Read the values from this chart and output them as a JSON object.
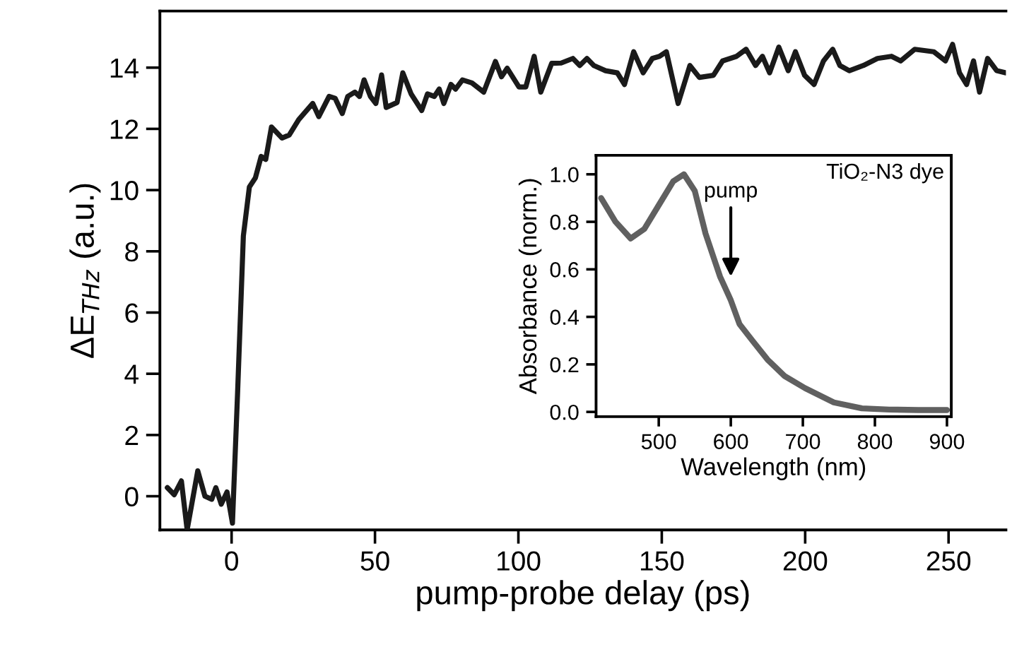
{
  "chart_data": [
    {
      "type": "line",
      "xlabel": "pump-probe delay (ps)",
      "ylabel": "ΔE$_{THz}$ (a.u.)",
      "xlim": [
        -25,
        270
      ],
      "ylim": [
        -1.1,
        15.85
      ],
      "xticks": [
        0,
        50,
        100,
        150,
        200,
        250
      ],
      "yticks": [
        0,
        2,
        4,
        6,
        8,
        10,
        12,
        14
      ],
      "grid": false,
      "legend": false,
      "marker": "none",
      "line_style": "solid",
      "series": [
        {
          "color": "#1a1a1a",
          "x": [
            -22.4,
            -20.0,
            -17.5,
            -15.5,
            -11.8,
            -9.3,
            -6.9,
            -5.5,
            -3.6,
            -1.6,
            0.3,
            2.1,
            4.1,
            6.2,
            8.3,
            10.3,
            11.9,
            13.9,
            17.6,
            20.1,
            23.4,
            28.3,
            30.4,
            34,
            36.1,
            38.6,
            40.5,
            43,
            44.6,
            46.2,
            48.4,
            50.3,
            52.3,
            53.9,
            57.7,
            59.7,
            62.6,
            66.3,
            68.3,
            70.7,
            72.4,
            74,
            76.5,
            78.1,
            80.5,
            83.8,
            87.9,
            92,
            94.1,
            96.1,
            100.2,
            102.6,
            105.5,
            107.8,
            111.6,
            114.9,
            119,
            121.4,
            123.9,
            126.3,
            130.4,
            134.5,
            137,
            140.2,
            143.5,
            146.7,
            149.2,
            151.6,
            155.7,
            159.8,
            163.1,
            168,
            171.2,
            176.1,
            179.4,
            182.7,
            185.1,
            187.6,
            190.8,
            194.1,
            196.6,
            199.8,
            203.1,
            206.4,
            209.6,
            212.1,
            215.4,
            220.3,
            225.2,
            230.1,
            233.3,
            238.2,
            244.8,
            248.9,
            251.4,
            253.8,
            256.3,
            258.7,
            260.8,
            263.6,
            266.8,
            270
          ],
          "values": [
            0.28,
            0.05,
            0.5,
            -1.1,
            0.83,
            0,
            -0.1,
            0.28,
            -0.26,
            0.14,
            -0.88,
            3.4,
            8.5,
            10.1,
            10.4,
            11.1,
            11.0,
            12.06,
            11.7,
            11.8,
            12.3,
            12.83,
            12.4,
            13.06,
            13.0,
            12.5,
            13.06,
            13.2,
            13.06,
            13.6,
            13.06,
            12.83,
            13.76,
            12.7,
            12.86,
            13.83,
            13.14,
            12.6,
            13.14,
            13.06,
            13.3,
            12.83,
            13.45,
            13.3,
            13.6,
            13.5,
            13.2,
            14.2,
            13.7,
            13.98,
            13.37,
            13.37,
            14.37,
            13.2,
            14.14,
            14.15,
            14.3,
            14.07,
            14.3,
            14.07,
            13.9,
            13.83,
            13.45,
            14.52,
            13.83,
            14.3,
            14.37,
            14.52,
            12.83,
            14.07,
            13.68,
            13.75,
            14.22,
            14.37,
            14.6,
            14.07,
            14.37,
            13.83,
            14.67,
            13.9,
            14.52,
            13.75,
            13.45,
            14.22,
            14.6,
            14.07,
            13.9,
            14.07,
            14.3,
            14.37,
            14.22,
            14.6,
            14.52,
            14.22,
            14.76,
            13.83,
            13.45,
            14.22,
            13.2,
            14.3,
            13.9,
            13.83
          ]
        }
      ]
    },
    {
      "type": "line",
      "xlabel": "Wavelength (nm)",
      "ylabel": "Absorbance (norm.)",
      "xlim": [
        413,
        906
      ],
      "ylim": [
        -0.02,
        1.08
      ],
      "xticks": [
        500,
        600,
        700,
        800,
        900
      ],
      "yticks": [
        {
          "value": 0,
          "label": "0.0"
        },
        0.2,
        0.4,
        0.6,
        0.8,
        {
          "value": 1,
          "label": "1.0"
        }
      ],
      "grid": false,
      "legend": false,
      "marker": "none",
      "line_style": "solid",
      "annotations": [
        "TiO₂-N3 dye",
        {
          "text": "pump",
          "x": 600,
          "y": 0.57
        }
      ],
      "series": [
        {
          "color": "#606060",
          "x": [
            420,
            440,
            461,
            480,
            500,
            520,
            535,
            550,
            565,
            585,
            600,
            612,
            630,
            651,
            675,
            703,
            743,
            782,
            820,
            860,
            900
          ],
          "values": [
            0.9,
            0.8,
            0.73,
            0.77,
            0.87,
            0.97,
            1.0,
            0.93,
            0.75,
            0.57,
            0.47,
            0.37,
            0.3,
            0.22,
            0.15,
            0.1,
            0.04,
            0.015,
            0.01,
            0.008,
            0.008
          ]
        }
      ]
    }
  ]
}
